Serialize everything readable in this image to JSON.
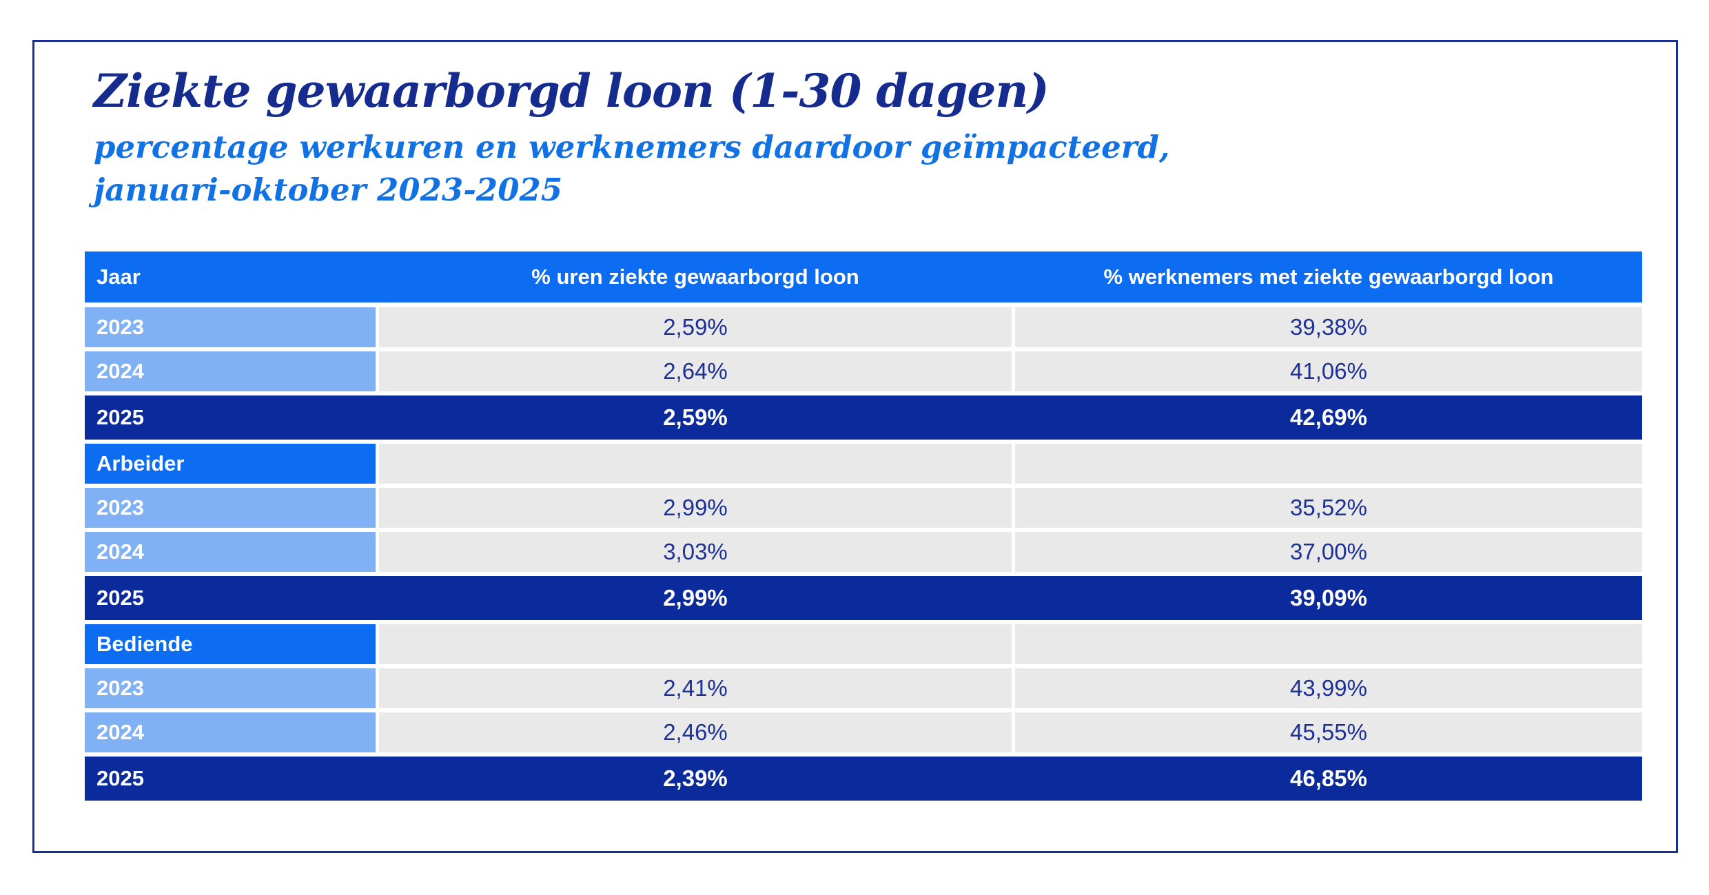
{
  "header": {
    "title": "Ziekte gewaarborgd loon (1-30 dagen)",
    "subtitle_line1": "percentage werkuren en werknemers daardoor geïmpacteerd,",
    "subtitle_line2": "januari-oktober 2023-2025"
  },
  "colors": {
    "frame_border": "#1b2f8f",
    "title_text": "#152b8e",
    "subtitle_text": "#1271e3",
    "header_row_blue": "#0c6cf2",
    "year_cell_light_blue": "#80b1f4",
    "highlight_row_navy": "#0b2a9c",
    "value_cell_gray": "#e9e9e9",
    "value_text_navy": "#1d3194",
    "white_text": "#ffffff"
  },
  "chart_data": {
    "type": "table",
    "title": "Ziekte gewaarborgd loon (1-30 dagen)",
    "subtitle": "percentage werkuren en werknemers daardoor geïmpacteerd, januari-oktober 2023-2025",
    "columns": [
      "Jaar",
      "% uren ziekte gewaarborgd loon",
      "% werknemers met ziekte gewaarborgd loon"
    ],
    "sections": [
      {
        "label": "",
        "rows": [
          {
            "jaar": "2023",
            "uren": "2,59%",
            "werknemers": "39,38%",
            "highlight": false
          },
          {
            "jaar": "2024",
            "uren": "2,64%",
            "werknemers": "41,06%",
            "highlight": false
          },
          {
            "jaar": "2025",
            "uren": "2,59%",
            "werknemers": "42,69%",
            "highlight": true
          }
        ]
      },
      {
        "label": "Arbeider",
        "rows": [
          {
            "jaar": "2023",
            "uren": "2,99%",
            "werknemers": "35,52%",
            "highlight": false
          },
          {
            "jaar": "2024",
            "uren": "3,03%",
            "werknemers": "37,00%",
            "highlight": false
          },
          {
            "jaar": "2025",
            "uren": "2,99%",
            "werknemers": "39,09%",
            "highlight": true
          }
        ]
      },
      {
        "label": "Bediende",
        "rows": [
          {
            "jaar": "2023",
            "uren": "2,41%",
            "werknemers": "43,99%",
            "highlight": false
          },
          {
            "jaar": "2024",
            "uren": "2,46%",
            "werknemers": "45,55%",
            "highlight": false
          },
          {
            "jaar": "2025",
            "uren": "2,39%",
            "werknemers": "46,85%",
            "highlight": true
          }
        ]
      }
    ]
  }
}
